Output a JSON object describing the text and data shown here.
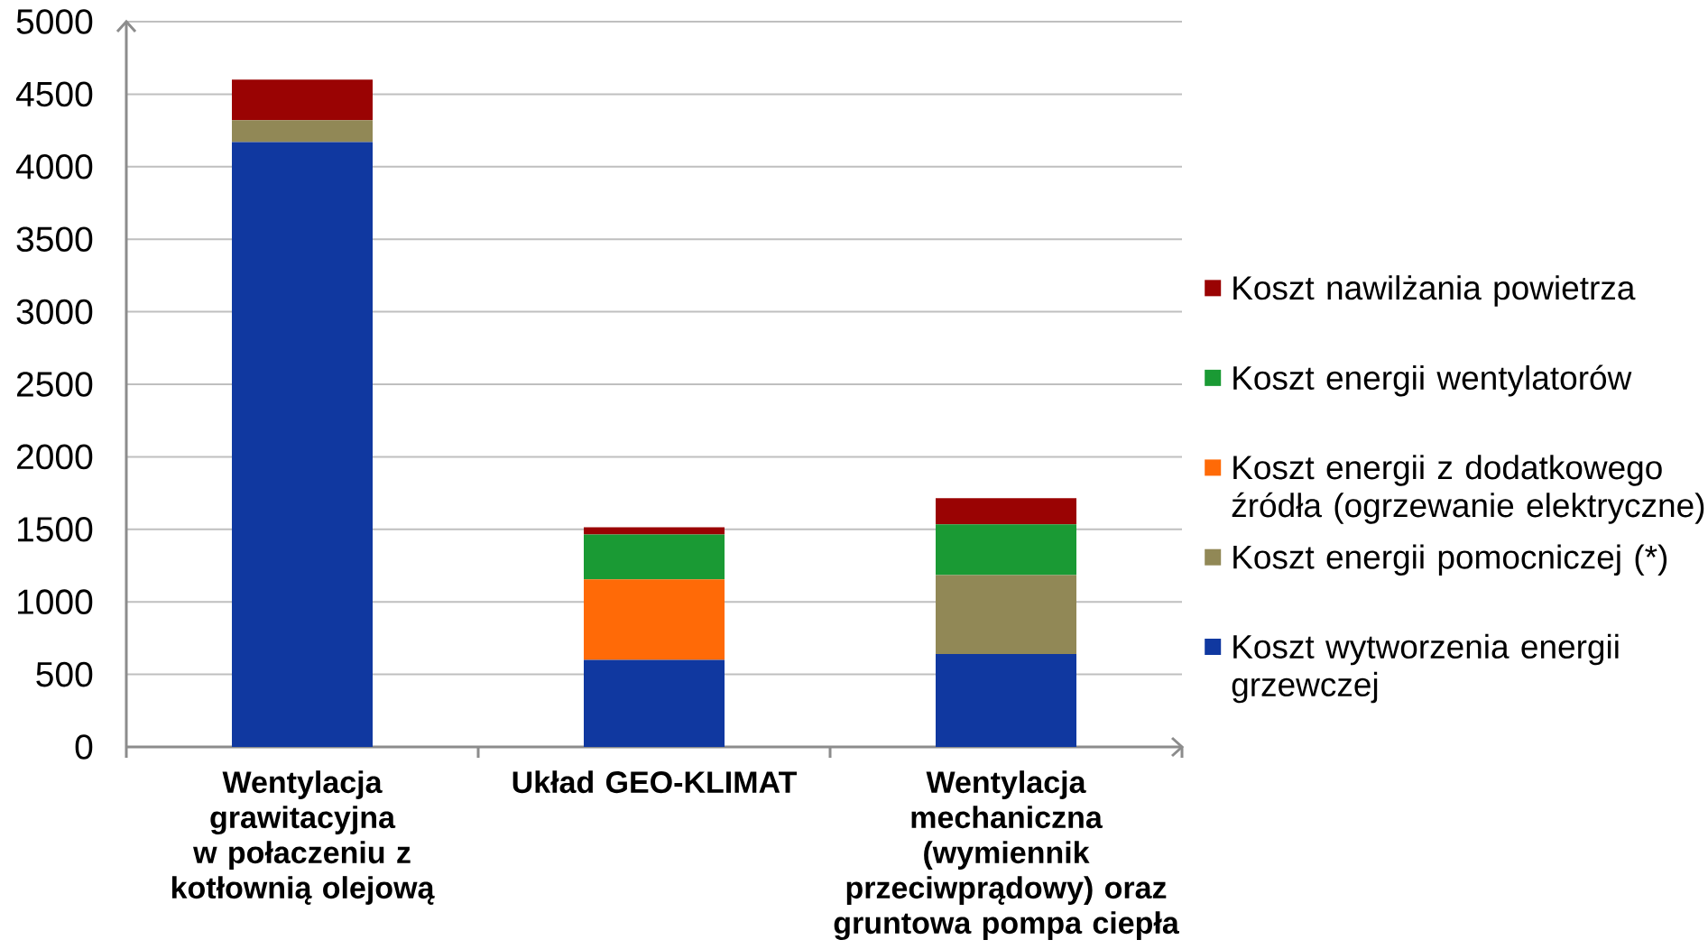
{
  "chart_data": {
    "type": "bar",
    "stacked": true,
    "categories": [
      "Wentylacja grawitacyjna w połaczeniu z kotłownią olejową",
      "Układ GEO-KLIMAT",
      "Wentylacja mechaniczna (wymiennik przeciwprądowy) oraz gruntowa pompa ciepła"
    ],
    "series": [
      {
        "name": "Koszt wytworzenia energii grzewczej",
        "color": "#1038a0",
        "values": [
          4170,
          600,
          640
        ]
      },
      {
        "name": "Koszt energii pomocniczej (*)",
        "color": "#918856",
        "values": [
          150,
          null,
          545
        ]
      },
      {
        "name": "Koszt energii z dodatkowego źródła (ogrzewanie elektryczne)",
        "color": "#ff6a07",
        "values": [
          null,
          555,
          null
        ]
      },
      {
        "name": "Koszt energii wentylatorów",
        "color": "#1a9a34",
        "values": [
          null,
          310,
          350
        ]
      },
      {
        "name": "Koszt nawilżania powietrza",
        "color": "#9a0303",
        "values": [
          280,
          50,
          180
        ]
      }
    ],
    "ylim": [
      0,
      5000
    ],
    "yticks": [
      0,
      500,
      1000,
      1500,
      2000,
      2500,
      3000,
      3500,
      4000,
      4500,
      5000
    ],
    "grid": "y",
    "legend": "right"
  }
}
